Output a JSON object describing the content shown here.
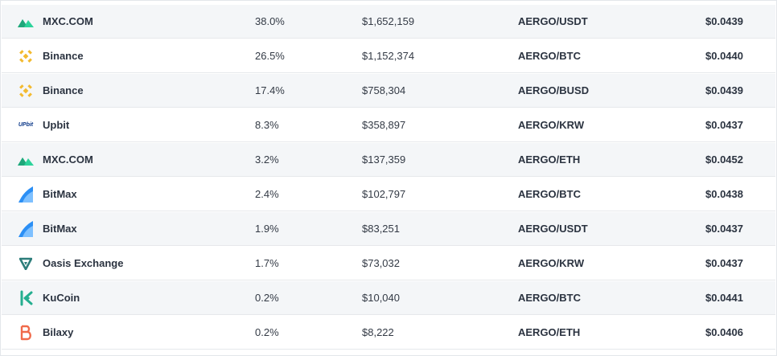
{
  "colors": {
    "mxc": "#2dd39b",
    "binance": "#f3ba2f",
    "upbit": "#093687",
    "bitmax": "#2b8ff5",
    "oasis": "#2c7d7a",
    "kucoin": "#24ae8f",
    "bilaxy": "#f06a4a"
  },
  "rows": [
    {
      "exchange": "MXC.COM",
      "icon": "mxc-logo-icon",
      "share": "38.0%",
      "volume": "$1,652,159",
      "pair": "AERGO/USDT",
      "price": "$0.0439"
    },
    {
      "exchange": "Binance",
      "icon": "binance-logo-icon",
      "share": "26.5%",
      "volume": "$1,152,374",
      "pair": "AERGO/BTC",
      "price": "$0.0440"
    },
    {
      "exchange": "Binance",
      "icon": "binance-logo-icon",
      "share": "17.4%",
      "volume": "$758,304",
      "pair": "AERGO/BUSD",
      "price": "$0.0439"
    },
    {
      "exchange": "Upbit",
      "icon": "upbit-logo-icon",
      "icon_text": "UPbit",
      "share": "8.3%",
      "volume": "$358,897",
      "pair": "AERGO/KRW",
      "price": "$0.0437"
    },
    {
      "exchange": "MXC.COM",
      "icon": "mxc-logo-icon",
      "share": "3.2%",
      "volume": "$137,359",
      "pair": "AERGO/ETH",
      "price": "$0.0452"
    },
    {
      "exchange": "BitMax",
      "icon": "bitmax-logo-icon",
      "share": "2.4%",
      "volume": "$102,797",
      "pair": "AERGO/BTC",
      "price": "$0.0438"
    },
    {
      "exchange": "BitMax",
      "icon": "bitmax-logo-icon",
      "share": "1.9%",
      "volume": "$83,251",
      "pair": "AERGO/USDT",
      "price": "$0.0437"
    },
    {
      "exchange": "Oasis Exchange",
      "icon": "oasis-logo-icon",
      "share": "1.7%",
      "volume": "$73,032",
      "pair": "AERGO/KRW",
      "price": "$0.0437"
    },
    {
      "exchange": "KuCoin",
      "icon": "kucoin-logo-icon",
      "share": "0.2%",
      "volume": "$10,040",
      "pair": "AERGO/BTC",
      "price": "$0.0441"
    },
    {
      "exchange": "Bilaxy",
      "icon": "bilaxy-logo-icon",
      "share": "0.2%",
      "volume": "$8,222",
      "pair": "AERGO/ETH",
      "price": "$0.0406"
    }
  ]
}
